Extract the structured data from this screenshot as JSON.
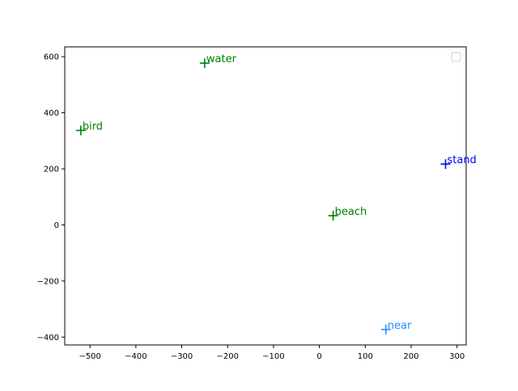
{
  "chart_data": {
    "type": "scatter",
    "title": "",
    "xlabel": "",
    "ylabel": "",
    "xlim": [
      -555,
      320
    ],
    "ylim": [
      -428,
      635
    ],
    "grid": false,
    "legend": {
      "placement": "top-right",
      "entries": []
    },
    "x_ticks": [
      -500,
      -400,
      -300,
      -200,
      -100,
      0,
      100,
      200,
      300
    ],
    "x_tick_labels": [
      "−500",
      "−400",
      "−300",
      "−200",
      "−100",
      "0",
      "100",
      "200",
      "300"
    ],
    "y_ticks": [
      -400,
      -200,
      0,
      200,
      400,
      600
    ],
    "y_tick_labels": [
      "−400",
      "−200",
      "0",
      "200",
      "400",
      "600"
    ],
    "points": [
      {
        "label": "water",
        "x": -250,
        "y": 577,
        "color": "#008000"
      },
      {
        "label": "bird",
        "x": -520,
        "y": 337,
        "color": "#008000"
      },
      {
        "label": "stand",
        "x": 275,
        "y": 217,
        "color": "#0000ff"
      },
      {
        "label": "beach",
        "x": 30,
        "y": 33,
        "color": "#008000"
      },
      {
        "label": "near",
        "x": 145,
        "y": -373,
        "color": "#1e90ff"
      }
    ]
  }
}
